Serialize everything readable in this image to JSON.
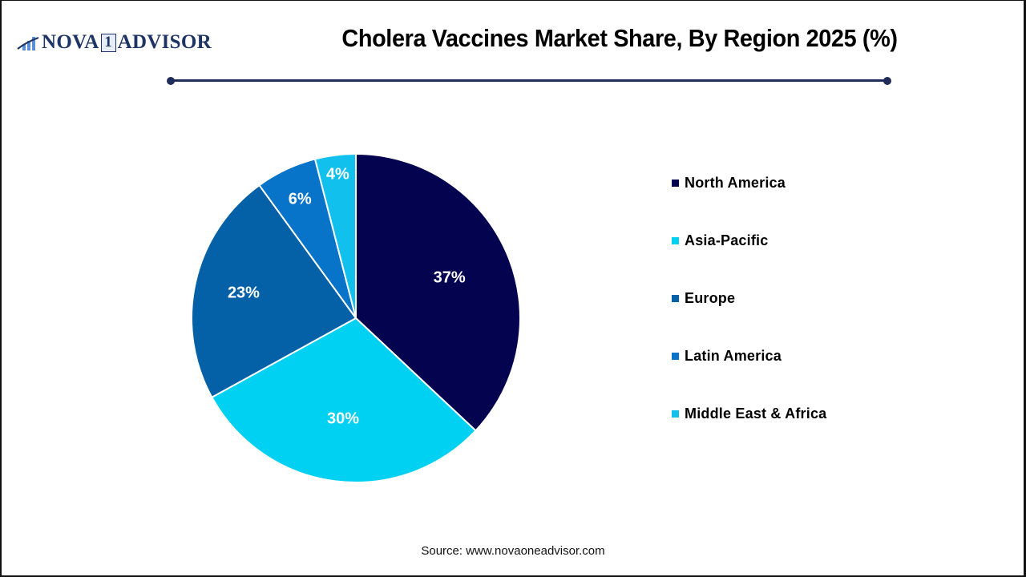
{
  "logo": {
    "left_text": "NOVA",
    "box_text": "1",
    "right_text": "ADVISOR"
  },
  "header": {
    "title": "Cholera Vaccines Market Share, By Region 2025 (%)"
  },
  "footer": {
    "source": "Source: www.novaoneadvisor.com"
  },
  "colors": {
    "frame": "#111111",
    "divider": "#1f2d5a",
    "logo": "#1e3366"
  },
  "chart_data": {
    "type": "pie",
    "title": "Cholera Vaccines Market Share, By Region 2025 (%)",
    "categories": [
      "North America",
      "Asia-Pacific",
      "Europe",
      "Latin America",
      "Middle East & Africa"
    ],
    "values": [
      37,
      30,
      23,
      6,
      4
    ],
    "labels": [
      "37%",
      "30%",
      "23%",
      "6%",
      "4%"
    ],
    "colors": [
      "#03034f",
      "#00d0f2",
      "#0461a8",
      "#0874c9",
      "#12c0ee"
    ],
    "start_angle_deg": 0,
    "direction": "clockwise",
    "legend_position": "right",
    "unit": "%"
  },
  "legend": {
    "items": [
      {
        "label": "North America",
        "color": "#03034f"
      },
      {
        "label": "Asia-Pacific",
        "color": "#00d0f2"
      },
      {
        "label": "Europe",
        "color": "#0461a8"
      },
      {
        "label": "Latin America",
        "color": "#0874c9"
      },
      {
        "label": "Middle East & Africa",
        "color": "#12c0ee"
      }
    ]
  }
}
